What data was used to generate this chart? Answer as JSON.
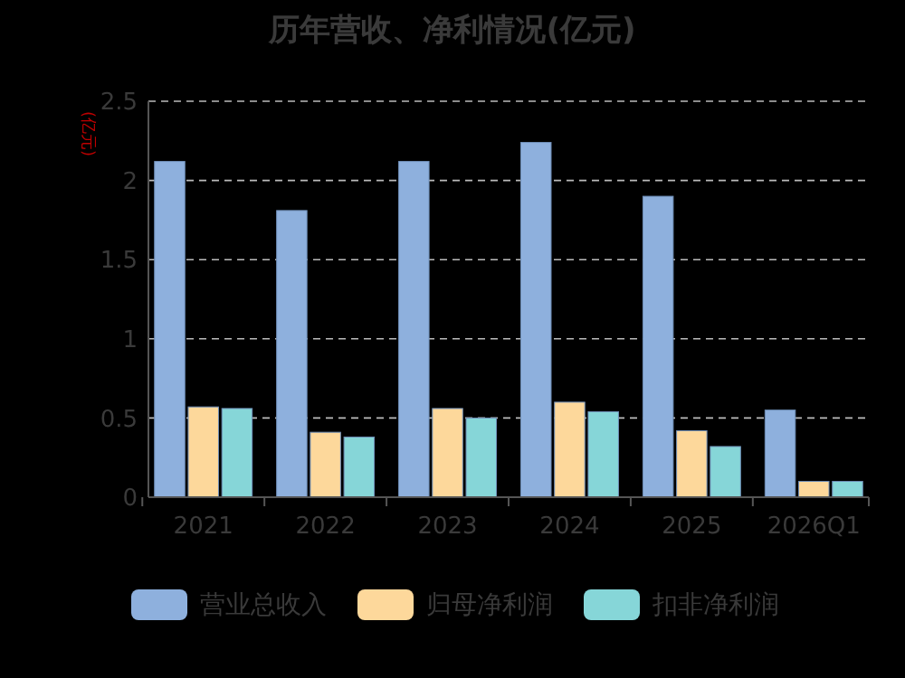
{
  "chart_data": {
    "type": "bar",
    "title": "历年营收、净利情况(亿元)",
    "ylabel": "(亿元)",
    "categories": [
      "2021",
      "2022",
      "2023",
      "2024",
      "2025",
      "2026Q1"
    ],
    "series": [
      {
        "name": "营业总收入",
        "color": "#8eb0dd",
        "values": [
          2.12,
          1.81,
          2.12,
          2.24,
          1.9,
          0.55
        ]
      },
      {
        "name": "归母净利润",
        "color": "#fdd89b",
        "values": [
          0.57,
          0.41,
          0.56,
          0.6,
          0.42,
          0.1
        ]
      },
      {
        "name": "扣非净利润",
        "color": "#86d6d8",
        "values": [
          0.56,
          0.38,
          0.5,
          0.54,
          0.32,
          0.1
        ]
      }
    ],
    "ylim": [
      0,
      2.5
    ],
    "yticks": [
      0,
      0.5,
      1,
      1.5,
      2,
      2.5
    ],
    "grid": "y",
    "legend": "bottom"
  }
}
